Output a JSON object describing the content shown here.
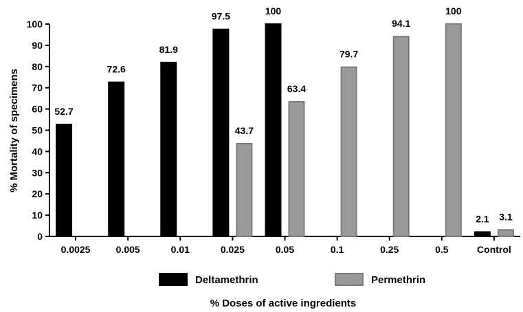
{
  "chart_data": {
    "type": "bar",
    "title": "",
    "xlabel": "% Doses of active ingredients",
    "ylabel": "% Mortality of specimens",
    "ylim": [
      0,
      100
    ],
    "yticks": [
      0,
      10,
      20,
      30,
      40,
      50,
      60,
      70,
      80,
      90,
      100
    ],
    "categories": [
      "0.0025",
      "0.005",
      "0.01",
      "0.025",
      "0.05",
      "0.1",
      "0.25",
      "0.5",
      "Control"
    ],
    "legend_position": "bottom",
    "grid": false,
    "series": [
      {
        "name": "Deltamethrin",
        "color": "#000000",
        "values": [
          52.7,
          72.6,
          81.9,
          97.5,
          100,
          null,
          null,
          null,
          2.1
        ],
        "labels": [
          "52.7",
          "72.6",
          "81.9",
          "97.5",
          "100",
          "",
          "",
          "",
          "2.1"
        ]
      },
      {
        "name": "Permethrin",
        "color": "#9a9a9a",
        "values": [
          null,
          null,
          null,
          43.7,
          63.4,
          79.7,
          94.1,
          100,
          3.1
        ],
        "labels": [
          "",
          "",
          "",
          "43.7",
          "63.4",
          "79.7",
          "94.1",
          "100",
          "3.1"
        ]
      }
    ]
  }
}
